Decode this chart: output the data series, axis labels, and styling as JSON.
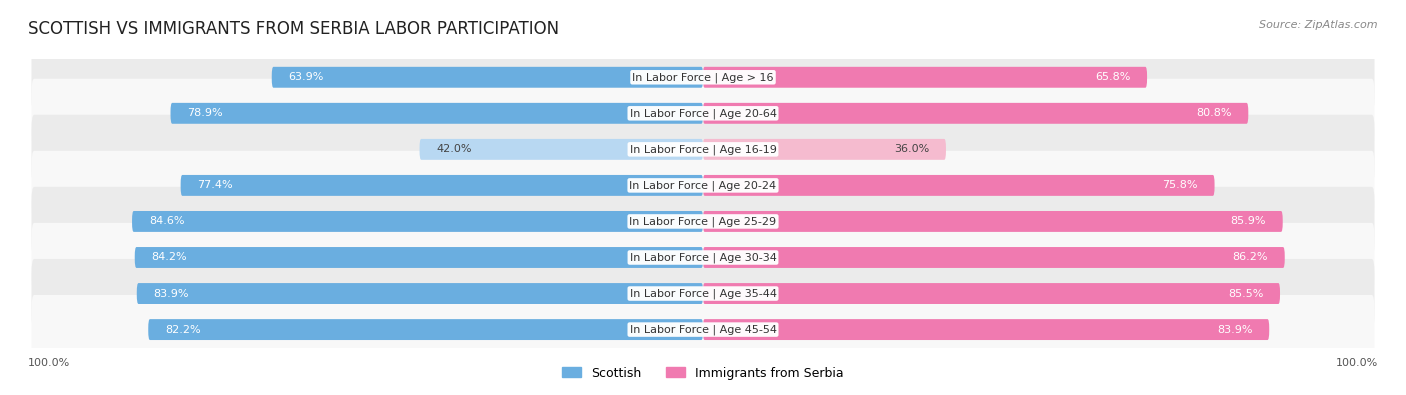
{
  "title": "SCOTTISH VS IMMIGRANTS FROM SERBIA LABOR PARTICIPATION",
  "source": "Source: ZipAtlas.com",
  "categories": [
    "In Labor Force | Age > 16",
    "In Labor Force | Age 20-64",
    "In Labor Force | Age 16-19",
    "In Labor Force | Age 20-24",
    "In Labor Force | Age 25-29",
    "In Labor Force | Age 30-34",
    "In Labor Force | Age 35-44",
    "In Labor Force | Age 45-54"
  ],
  "scottish_values": [
    63.9,
    78.9,
    42.0,
    77.4,
    84.6,
    84.2,
    83.9,
    82.2
  ],
  "serbia_values": [
    65.8,
    80.8,
    36.0,
    75.8,
    85.9,
    86.2,
    85.5,
    83.9
  ],
  "scottish_color": "#6AAEE0",
  "scottish_light_color": "#B8D8F2",
  "serbia_color": "#F07AB0",
  "serbia_light_color": "#F5BBCF",
  "row_bg_even": "#EBEBEB",
  "row_bg_odd": "#F8F8F8",
  "max_value": 100.0,
  "bar_height": 0.58,
  "title_fontsize": 12,
  "label_fontsize": 8,
  "value_fontsize": 8,
  "legend_fontsize": 9,
  "source_fontsize": 8,
  "background_color": "#FFFFFF",
  "light_threshold": 50.0
}
